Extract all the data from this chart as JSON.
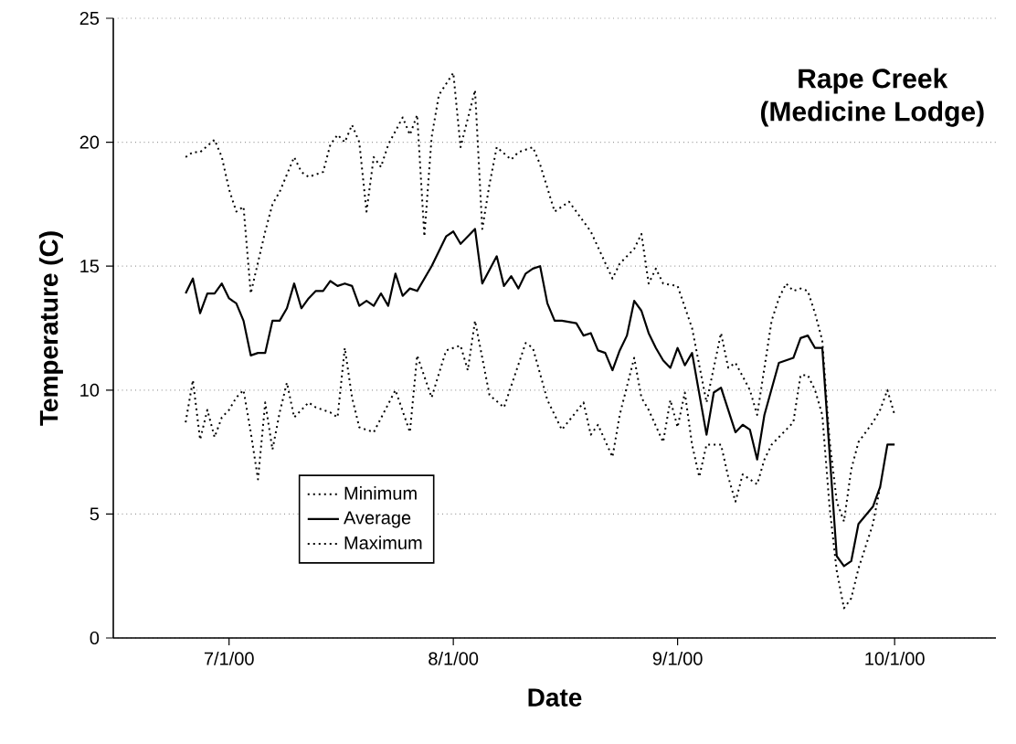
{
  "chart_data": {
    "type": "line",
    "title": "Rape Creek",
    "subtitle": "(Medicine Lodge)",
    "xlabel": "Date",
    "ylabel": "Temperature (C)",
    "xlim": [
      "2000-06-15",
      "2000-10-15"
    ],
    "xticks": [
      {
        "value": "2000-07-01",
        "label": "7/1/00"
      },
      {
        "value": "2000-08-01",
        "label": "8/1/00"
      },
      {
        "value": "2000-09-01",
        "label": "9/1/00"
      },
      {
        "value": "2000-10-01",
        "label": "10/1/00"
      }
    ],
    "ylim": [
      0,
      25
    ],
    "yticks": [
      0,
      5,
      10,
      15,
      20,
      25
    ],
    "grid": "y",
    "legend": "bottom left",
    "series": [
      {
        "name": "Minimum",
        "color": "#000000",
        "line_style": "dotted",
        "x": [
          "2000-06-25",
          "2000-06-26",
          "2000-06-27",
          "2000-06-28",
          "2000-06-29",
          "2000-06-30",
          "2000-07-01",
          "2000-07-02",
          "2000-07-03",
          "2000-07-04",
          "2000-07-05",
          "2000-07-06",
          "2000-07-07",
          "2000-07-08",
          "2000-07-09",
          "2000-07-10",
          "2000-07-12",
          "2000-07-13",
          "2000-07-15",
          "2000-07-16",
          "2000-07-17",
          "2000-07-18",
          "2000-07-19",
          "2000-07-21",
          "2000-07-24",
          "2000-07-26",
          "2000-07-27",
          "2000-07-29",
          "2000-07-31",
          "2000-08-02",
          "2000-08-03",
          "2000-08-04",
          "2000-08-06",
          "2000-08-08",
          "2000-08-11",
          "2000-08-12",
          "2000-08-14",
          "2000-08-16",
          "2000-08-19",
          "2000-08-20",
          "2000-08-21",
          "2000-08-23",
          "2000-08-24",
          "2000-08-26",
          "2000-08-27",
          "2000-08-28",
          "2000-08-30",
          "2000-08-31",
          "2000-09-01",
          "2000-09-02",
          "2000-09-03",
          "2000-09-04",
          "2000-09-05",
          "2000-09-07",
          "2000-09-08",
          "2000-09-09",
          "2000-09-10",
          "2000-09-11",
          "2000-09-12",
          "2000-09-13",
          "2000-09-14",
          "2000-09-16",
          "2000-09-17",
          "2000-09-18",
          "2000-09-19",
          "2000-09-20",
          "2000-09-21",
          "2000-09-22",
          "2000-09-23",
          "2000-09-24",
          "2000-09-25",
          "2000-09-26",
          "2000-09-28",
          "2000-09-29"
        ],
        "values": [
          8.7,
          10.4,
          8.0,
          9.2,
          8.1,
          8.9,
          9.2,
          9.7,
          10.0,
          8.3,
          6.4,
          9.5,
          7.6,
          9.1,
          10.3,
          8.9,
          9.5,
          9.3,
          9.1,
          8.9,
          11.7,
          9.7,
          8.5,
          8.3,
          10.0,
          8.3,
          11.4,
          9.7,
          11.6,
          11.8,
          10.8,
          12.8,
          9.8,
          9.3,
          11.9,
          11.7,
          9.6,
          8.4,
          9.5,
          8.2,
          8.6,
          7.3,
          9.0,
          11.3,
          9.7,
          9.2,
          7.9,
          9.6,
          8.5,
          9.9,
          7.8,
          6.5,
          7.8,
          7.8,
          6.5,
          5.5,
          6.6,
          6.4,
          6.2,
          7.2,
          7.8,
          8.4,
          8.7,
          10.6,
          10.6,
          10.0,
          9.0,
          5.3,
          2.7,
          1.2,
          1.6,
          2.8,
          4.6,
          6.1
        ]
      },
      {
        "name": "Average",
        "color": "#000000",
        "line_style": "solid",
        "x": [
          "2000-06-25",
          "2000-06-26",
          "2000-06-27",
          "2000-06-28",
          "2000-06-29",
          "2000-06-30",
          "2000-07-01",
          "2000-07-02",
          "2000-07-03",
          "2000-07-04",
          "2000-07-05",
          "2000-07-06",
          "2000-07-07",
          "2000-07-08",
          "2000-07-09",
          "2000-07-10",
          "2000-07-11",
          "2000-07-12",
          "2000-07-13",
          "2000-07-14",
          "2000-07-15",
          "2000-07-16",
          "2000-07-17",
          "2000-07-18",
          "2000-07-19",
          "2000-07-20",
          "2000-07-21",
          "2000-07-22",
          "2000-07-23",
          "2000-07-24",
          "2000-07-25",
          "2000-07-26",
          "2000-07-27",
          "2000-07-29",
          "2000-07-31",
          "2000-08-01",
          "2000-08-02",
          "2000-08-04",
          "2000-08-05",
          "2000-08-07",
          "2000-08-08",
          "2000-08-09",
          "2000-08-10",
          "2000-08-11",
          "2000-08-12",
          "2000-08-13",
          "2000-08-14",
          "2000-08-15",
          "2000-08-16",
          "2000-08-18",
          "2000-08-19",
          "2000-08-20",
          "2000-08-21",
          "2000-08-22",
          "2000-08-23",
          "2000-08-24",
          "2000-08-25",
          "2000-08-26",
          "2000-08-27",
          "2000-08-28",
          "2000-08-29",
          "2000-08-30",
          "2000-08-31",
          "2000-09-01",
          "2000-09-02",
          "2000-09-03",
          "2000-09-05",
          "2000-09-06",
          "2000-09-07",
          "2000-09-09",
          "2000-09-10",
          "2000-09-11",
          "2000-09-12",
          "2000-09-13",
          "2000-09-15",
          "2000-09-17",
          "2000-09-18",
          "2000-09-19",
          "2000-09-20",
          "2000-09-21",
          "2000-09-22",
          "2000-09-23",
          "2000-09-24",
          "2000-09-25",
          "2000-09-26",
          "2000-09-28",
          "2000-09-29",
          "2000-09-30",
          "2000-10-01"
        ],
        "values": [
          13.9,
          14.5,
          13.1,
          13.9,
          13.9,
          14.3,
          13.7,
          13.5,
          12.8,
          11.4,
          11.5,
          11.5,
          12.8,
          12.8,
          13.3,
          14.3,
          13.3,
          13.7,
          14.0,
          14.0,
          14.4,
          14.2,
          14.3,
          14.2,
          13.4,
          13.6,
          13.4,
          13.9,
          13.4,
          14.7,
          13.8,
          14.1,
          14.0,
          15.0,
          16.2,
          16.4,
          15.9,
          16.5,
          14.3,
          15.4,
          14.2,
          14.6,
          14.1,
          14.7,
          14.9,
          15.0,
          13.5,
          12.8,
          12.8,
          12.7,
          12.2,
          12.3,
          11.6,
          11.5,
          10.8,
          11.6,
          12.2,
          13.6,
          13.2,
          12.3,
          11.7,
          11.2,
          10.9,
          11.7,
          11.0,
          11.5,
          8.2,
          9.9,
          10.1,
          8.3,
          8.6,
          8.4,
          7.2,
          9.0,
          11.1,
          11.3,
          12.1,
          12.2,
          11.7,
          11.7,
          7.5,
          3.3,
          2.9,
          3.1,
          4.6,
          5.3,
          6.1,
          7.8,
          7.8
        ]
      },
      {
        "name": "Maximum",
        "color": "#000000",
        "line_style": "dotted",
        "x": [
          "2000-06-25",
          "2000-06-26",
          "2000-06-27",
          "2000-06-29",
          "2000-06-30",
          "2000-07-01",
          "2000-07-02",
          "2000-07-03",
          "2000-07-04",
          "2000-07-06",
          "2000-07-07",
          "2000-07-08",
          "2000-07-10",
          "2000-07-11",
          "2000-07-12",
          "2000-07-14",
          "2000-07-15",
          "2000-07-16",
          "2000-07-17",
          "2000-07-18",
          "2000-07-19",
          "2000-07-20",
          "2000-07-21",
          "2000-07-22",
          "2000-07-23",
          "2000-07-25",
          "2000-07-26",
          "2000-07-27",
          "2000-07-28",
          "2000-07-29",
          "2000-07-30",
          "2000-08-01",
          "2000-08-02",
          "2000-08-04",
          "2000-08-05",
          "2000-08-06",
          "2000-08-07",
          "2000-08-09",
          "2000-08-10",
          "2000-08-12",
          "2000-08-13",
          "2000-08-15",
          "2000-08-17",
          "2000-08-20",
          "2000-08-23",
          "2000-08-24",
          "2000-08-26",
          "2000-08-27",
          "2000-08-28",
          "2000-08-29",
          "2000-08-30",
          "2000-09-01",
          "2000-09-03",
          "2000-09-05",
          "2000-09-07",
          "2000-09-08",
          "2000-09-09",
          "2000-09-11",
          "2000-09-12",
          "2000-09-13",
          "2000-09-14",
          "2000-09-15",
          "2000-09-16",
          "2000-09-17",
          "2000-09-18",
          "2000-09-19",
          "2000-09-20",
          "2000-09-21",
          "2000-09-22",
          "2000-09-23",
          "2000-09-24",
          "2000-09-25",
          "2000-09-26",
          "2000-09-28",
          "2000-09-29",
          "2000-09-30",
          "2000-10-01"
        ],
        "values": [
          19.4,
          19.6,
          19.6,
          20.1,
          19.4,
          18.1,
          17.2,
          17.4,
          13.9,
          16.4,
          17.5,
          18.0,
          19.4,
          18.8,
          18.6,
          18.8,
          19.9,
          20.3,
          20.0,
          20.7,
          20.0,
          17.2,
          19.4,
          19.0,
          19.9,
          21.0,
          20.3,
          21.1,
          16.2,
          20.2,
          21.9,
          22.8,
          19.8,
          22.1,
          16.5,
          18.3,
          19.8,
          19.3,
          19.6,
          19.8,
          19.1,
          17.2,
          17.6,
          16.4,
          14.5,
          15.1,
          15.7,
          16.3,
          14.3,
          14.9,
          14.3,
          14.2,
          12.5,
          9.5,
          12.3,
          10.9,
          11.1,
          10.0,
          9.0,
          10.9,
          12.8,
          13.7,
          14.3,
          14.0,
          14.1,
          14.0,
          13.1,
          12.0,
          8.0,
          5.5,
          4.7,
          6.8,
          7.9,
          8.7,
          9.2,
          10.0,
          9.0
        ]
      }
    ]
  }
}
